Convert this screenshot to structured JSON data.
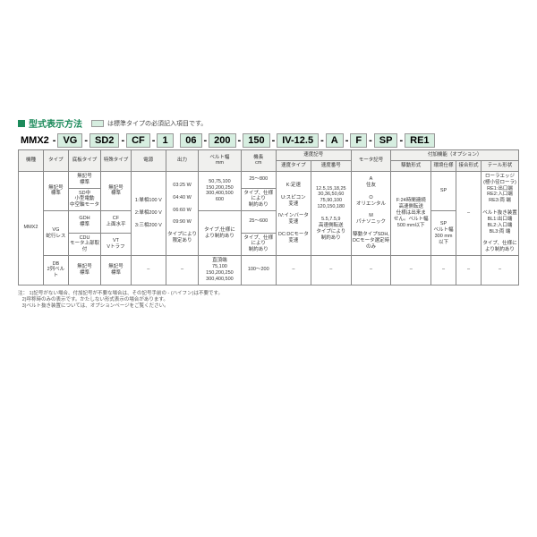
{
  "title": "型式表示方法",
  "legend_note": "は標準タイプの必須記入項目です。",
  "model": {
    "machine": "MMX2",
    "type": "VG",
    "base": "SD2",
    "special": "CF",
    "voltage": "1",
    "output": "06",
    "belt_w": "200",
    "length": "150",
    "speed": "IV-12.5",
    "motor": "A",
    "drive": "F",
    "env": "SP",
    "tail": "RE1",
    "hyphen": "-"
  },
  "headers": {
    "col1": "機種",
    "col2": "タイプ",
    "col3": "底板タイプ",
    "col4": "特殊タイプ",
    "col5": "電源",
    "col6": "出力",
    "col7a": "ベルト幅",
    "col7b": "mm",
    "col8a": "機長",
    "col8b": "cm",
    "speed_group": "速度記号",
    "col9": "速度タイプ",
    "col10": "速度番号",
    "col11": "モータ記号",
    "option_group": "付加機能（オプション）",
    "col12": "駆動形式",
    "col13": "環境仕様",
    "col14": "接合形式",
    "col15": "テール形状"
  },
  "cells": {
    "c_machine": "MMX2",
    "c_type_vg_s": "無記号\n標準",
    "c_type_vg": "VG\n蛇行レス",
    "c_type_db": "DB\n2列ベルト",
    "c_base_std": "無記号\n標準",
    "c_base_sd": "SD中\n小型電動\n中空軸モータ",
    "c_base_gdh": "GDH\n標準",
    "c_base_cdu": "CDU\nモータ上部取付",
    "c_base_std2": "無記号\n標準",
    "c_spec_std": "無記号\n標準",
    "c_spec_cf": "CF\n上面水平",
    "c_spec_vt": "VT\nVトラフ",
    "c_spec_std2": "無記号\n標準",
    "c_volt": "1:単相100 V\n\n2:単相200 V\n\n3:三相200 V",
    "c_out": "03:25 W\n\n04:40 W\n\n06:60 W\n\n09:90 W\n\nタイプにより\n限定あり",
    "c_beltw_a": "50,75,100\n150,200,250\n300,400,500\n600",
    "c_beltw_b": "タイプ,仕様に\nより制約あり",
    "c_beltw_c": "直頂端\n75,100\n150,200,250\n300,400,500",
    "c_len_a": "25〜800",
    "c_len_b": "タイプ、仕様\nにより\n制約あり",
    "c_len_c": "25〜600",
    "c_len_d": "タイプ、仕様\nにより\n制約あり",
    "c_len_e": "100〜200",
    "c_spd_t": "K:定速\n\nU:スピコン\n変速\n\nIV:インバータ\n変速\n\nDC:DCモータ\n変速",
    "c_spd_n": "12.5,15,18,25\n30,36,50,60\n75,90,100\n120,150,180\n\n5.5,7.5,9\n高速側転送\nタイプにより\n制約あり",
    "c_motor": "A\n住友\n\nO\nオリエンタル\n\nM\nパナソニック\n\n駆動タイプSDH,\nDCモータ選定時\nのみ",
    "c_drive": "F:24時間連続\n高速側転送\n仕様は出来ま\nせん。ベルト幅\n500 mm以下",
    "c_env": "SP",
    "c_env2": "SP\nベルト幅\n300 mm以下",
    "c_joint": "–",
    "c_tail": "ローラエッジ\n(極小径ローラ)\nRE1:出口端\nRE2:入口端\nRE3:両 端\n\nベルト抜き装置\nBL1:出口端\nBL2:入口端\nBL3:両 端\n\nタイプ、仕様に\nより制約あり",
    "dash": "–"
  },
  "notes": {
    "lead": "注：",
    "n1": "1)記号がない場合、付加記号が不要な場合は、その記号手前の - (ハイフン)は不要です。",
    "n2": "2)呼称時のみの表示です。かたしない形式表示の場合があります。",
    "n3": "3)ベルト抜き装置については、オプションページをご覧ください。"
  },
  "colors": {
    "accent": "#1b8a5a",
    "fill": "#d6eee0",
    "border": "#888"
  }
}
